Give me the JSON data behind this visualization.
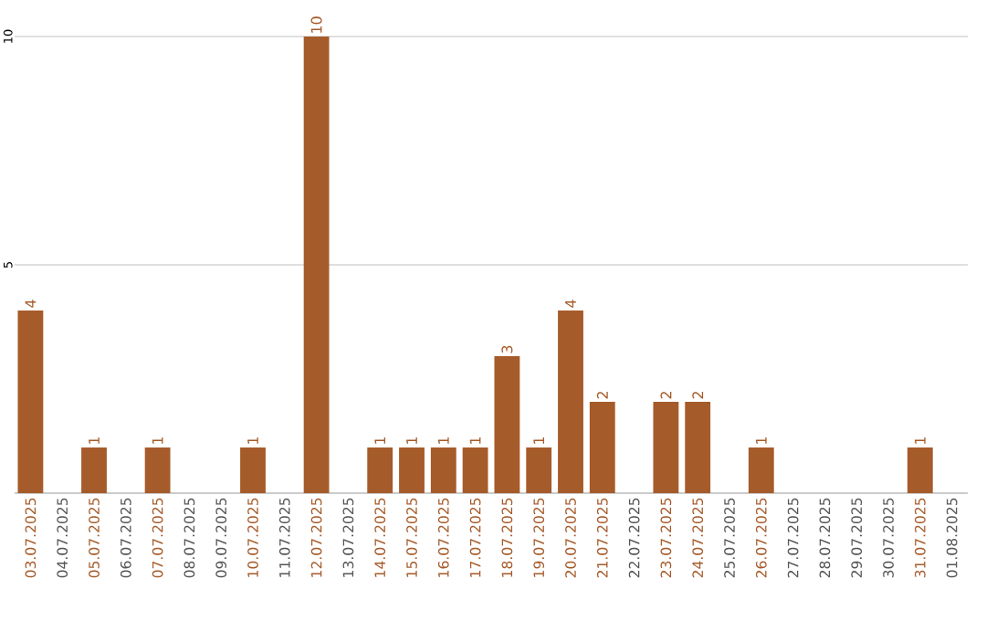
{
  "chart_data": {
    "type": "bar",
    "categories": [
      "03.07.2025",
      "04.07.2025",
      "05.07.2025",
      "06.07.2025",
      "07.07.2025",
      "08.07.2025",
      "09.07.2025",
      "10.07.2025",
      "11.07.2025",
      "12.07.2025",
      "13.07.2025",
      "14.07.2025",
      "15.07.2025",
      "16.07.2025",
      "17.07.2025",
      "18.07.2025",
      "19.07.2025",
      "20.07.2025",
      "21.07.2025",
      "22.07.2025",
      "23.07.2025",
      "24.07.2025",
      "25.07.2025",
      "26.07.2025",
      "27.07.2025",
      "28.07.2025",
      "29.07.2025",
      "30.07.2025",
      "31.07.2025",
      "01.08.2025"
    ],
    "values": [
      4,
      0,
      1,
      0,
      1,
      0,
      0,
      1,
      0,
      10,
      0,
      1,
      1,
      1,
      1,
      3,
      1,
      4,
      2,
      0,
      2,
      2,
      0,
      1,
      0,
      0,
      0,
      0,
      1,
      0
    ],
    "value_labels": [
      "4",
      null,
      "1",
      null,
      "1",
      null,
      null,
      "1",
      null,
      "10",
      null,
      "1",
      "1",
      "1",
      "1",
      "3",
      "1",
      "4",
      "2",
      null,
      "2",
      "2",
      null,
      "1",
      null,
      null,
      null,
      null,
      "1",
      null
    ],
    "color": "#a65b2a",
    "ylim": [
      0,
      10
    ],
    "yticks": [
      5,
      10
    ],
    "grid": "y"
  }
}
